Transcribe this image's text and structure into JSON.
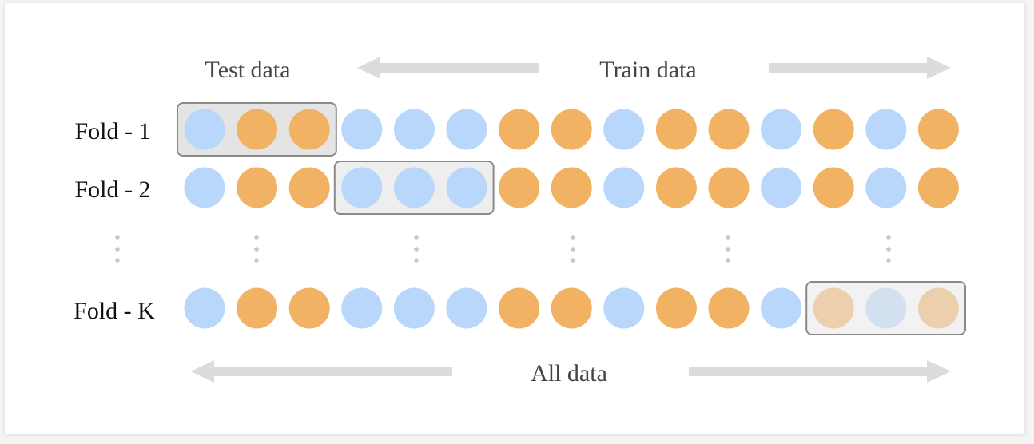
{
  "header": {
    "test_label": "Test data",
    "train_label": "Train data"
  },
  "footer": {
    "all_label": "All data"
  },
  "colors": {
    "blue": "#b8d7fb",
    "orange": "#f2b264",
    "box_fill": "#eeeeee",
    "box_stroke": "#8a8a8a",
    "arrow": "#dcdcdc",
    "ellipsis": "#c8c8c8"
  },
  "folds": [
    {
      "label": "Fold - 1",
      "points": [
        "blue",
        "orange",
        "orange",
        "blue",
        "blue",
        "blue",
        "orange",
        "orange",
        "blue",
        "orange",
        "orange",
        "blue",
        "orange",
        "blue",
        "orange"
      ],
      "test_group": 0
    },
    {
      "label": "Fold - 2",
      "points": [
        "blue",
        "orange",
        "orange",
        "blue",
        "blue",
        "blue",
        "orange",
        "orange",
        "blue",
        "orange",
        "orange",
        "blue",
        "orange",
        "blue",
        "orange"
      ],
      "test_group": 1
    },
    {
      "label": "Fold - K",
      "points": [
        "blue",
        "orange",
        "orange",
        "blue",
        "blue",
        "blue",
        "orange",
        "orange",
        "blue",
        "orange",
        "orange",
        "blue",
        "orange",
        "blue",
        "orange"
      ],
      "test_group": 4
    }
  ]
}
